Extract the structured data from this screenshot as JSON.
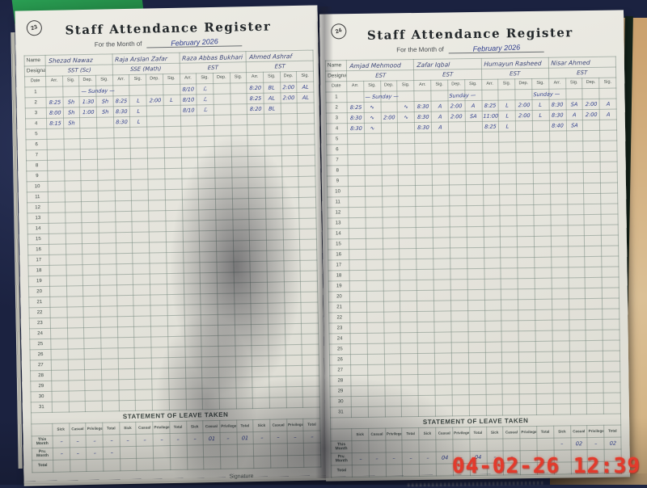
{
  "colors": {
    "background_cloth_navy": "#1e2644",
    "background_wall_tan": "#cfae7e",
    "book_cover_green": "#2ba456",
    "paper": "#eae9e1",
    "handwriting_ink_blue": "#2e3d8c",
    "timestamp_red": "#e33a2c"
  },
  "camera_overlay": {
    "datetime": "04-02-26 12:39"
  },
  "register": {
    "title": "Staff Attendance Register",
    "month_label": "For the Month of",
    "name_label": "Name",
    "designation_label": "Designation",
    "date_col": "Date",
    "attendance_cols": [
      "Arr.",
      "Sig.",
      "Dep.",
      "Sig."
    ],
    "day_rows": 31,
    "leave_title": "STATEMENT OF LEAVE TAKEN",
    "leave_cols": [
      "Sick",
      "Casual",
      "Privilege",
      "Total"
    ],
    "leave_row_labels": [
      "This Month",
      "Prv. Month",
      "Total"
    ],
    "signature_label": "Signature"
  },
  "pages": [
    {
      "page_no": "23",
      "month_value": "February 2026",
      "teachers": [
        {
          "name": "Shezad Nawaz",
          "designation": "SST (Sc)"
        },
        {
          "name": "Raja Arslan Zafar",
          "designation": "SSE (Math)"
        },
        {
          "name": "Raza Abbas Bukhari",
          "designation": "EST"
        },
        {
          "name": "Ahmed Ashraf",
          "designation": "EST"
        }
      ],
      "notes": [
        {
          "day": 1,
          "col": 2,
          "text": "— Sunday —"
        }
      ],
      "entries": [
        {
          "day": 1,
          "values": [
            "",
            "",
            "",
            "",
            "",
            "",
            "",
            "",
            "8/10",
            "ℒ",
            "",
            "",
            "8:20",
            "BL",
            "2:00",
            "AL"
          ]
        },
        {
          "day": 2,
          "values": [
            "8:25",
            "Sh",
            "1:30",
            "Sh",
            "8:25",
            "L",
            "2:00",
            "L",
            "8/10",
            "ℒ",
            "",
            "",
            "8:25",
            "AL",
            "2:00",
            "AL"
          ]
        },
        {
          "day": 3,
          "values": [
            "8:00",
            "Sh",
            "1:00",
            "Sh",
            "8:30",
            "L",
            "",
            "",
            "8/10",
            "ℒ",
            "",
            "",
            "8:20",
            "BL",
            "",
            ""
          ]
        },
        {
          "day": 4,
          "values": [
            "8:15",
            "Sh",
            "",
            "",
            "8:30",
            "L",
            "",
            "",
            "",
            "",
            "",
            "",
            "",
            "",
            "",
            ""
          ]
        }
      ],
      "leave": {
        "this_month": [
          "–",
          "–",
          "–",
          "–",
          "–",
          "–",
          "–",
          "–",
          "–",
          "01",
          "–",
          "01",
          "–",
          "–",
          "–",
          "–"
        ],
        "prv_month": [
          "–",
          "–",
          "–",
          "–",
          "",
          "",
          "",
          "",
          "",
          "",
          "",
          "",
          "",
          "",
          "",
          ""
        ],
        "total": [
          "",
          "",
          "",
          "",
          "",
          "",
          "",
          "",
          "",
          "",
          "",
          "",
          "",
          "",
          "",
          ""
        ]
      },
      "show_signature": true
    },
    {
      "page_no": "24",
      "month_value": "February 2026",
      "teachers": [
        {
          "name": "Amjad Mehmood",
          "designation": "EST"
        },
        {
          "name": "Zafar Iqbal",
          "designation": "EST"
        },
        {
          "name": "Humayun Rasheed",
          "designation": "EST"
        },
        {
          "name": "Nisar Ahmed",
          "designation": "EST"
        }
      ],
      "notes": [
        {
          "day": 1,
          "col": 1,
          "text": "— Sunday —"
        },
        {
          "day": 1,
          "col": 6,
          "text": "Sunday —"
        },
        {
          "day": 1,
          "col": 11,
          "text": "Sunday —"
        }
      ],
      "entries": [
        {
          "day": 2,
          "values": [
            "8:25",
            "∿",
            "",
            "∿",
            "8:30",
            "A",
            "2:00",
            "A",
            "8:25",
            "L",
            "2:00",
            "L",
            "8:30",
            "SA",
            "2:00",
            "A"
          ]
        },
        {
          "day": 3,
          "values": [
            "8:30",
            "∿",
            "2:00",
            "∿",
            "8:30",
            "A",
            "2:00",
            "SA",
            "11:00",
            "L",
            "2:00",
            "L",
            "8:30",
            "A",
            "2:00",
            "A"
          ]
        },
        {
          "day": 4,
          "values": [
            "8:30",
            "∿",
            "",
            "",
            "8:30",
            "A",
            "",
            "",
            "8:25",
            "L",
            "",
            "",
            "8:40",
            "SA",
            "",
            ""
          ]
        }
      ],
      "leave": {
        "this_month": [
          "",
          "",
          "",
          "",
          "",
          "",
          "",
          "",
          "",
          "",
          "",
          "",
          "–",
          "02",
          "–",
          "02"
        ],
        "prv_month": [
          "–",
          "–",
          "–",
          "–",
          "–",
          "04",
          "–",
          "04",
          "–",
          "–",
          "",
          "",
          "",
          "",
          "",
          ""
        ],
        "total": [
          "",
          "",
          "",
          "",
          "",
          "",
          "",
          "",
          "",
          "",
          "",
          "",
          "",
          "",
          "",
          ""
        ]
      },
      "show_signature": false
    }
  ]
}
